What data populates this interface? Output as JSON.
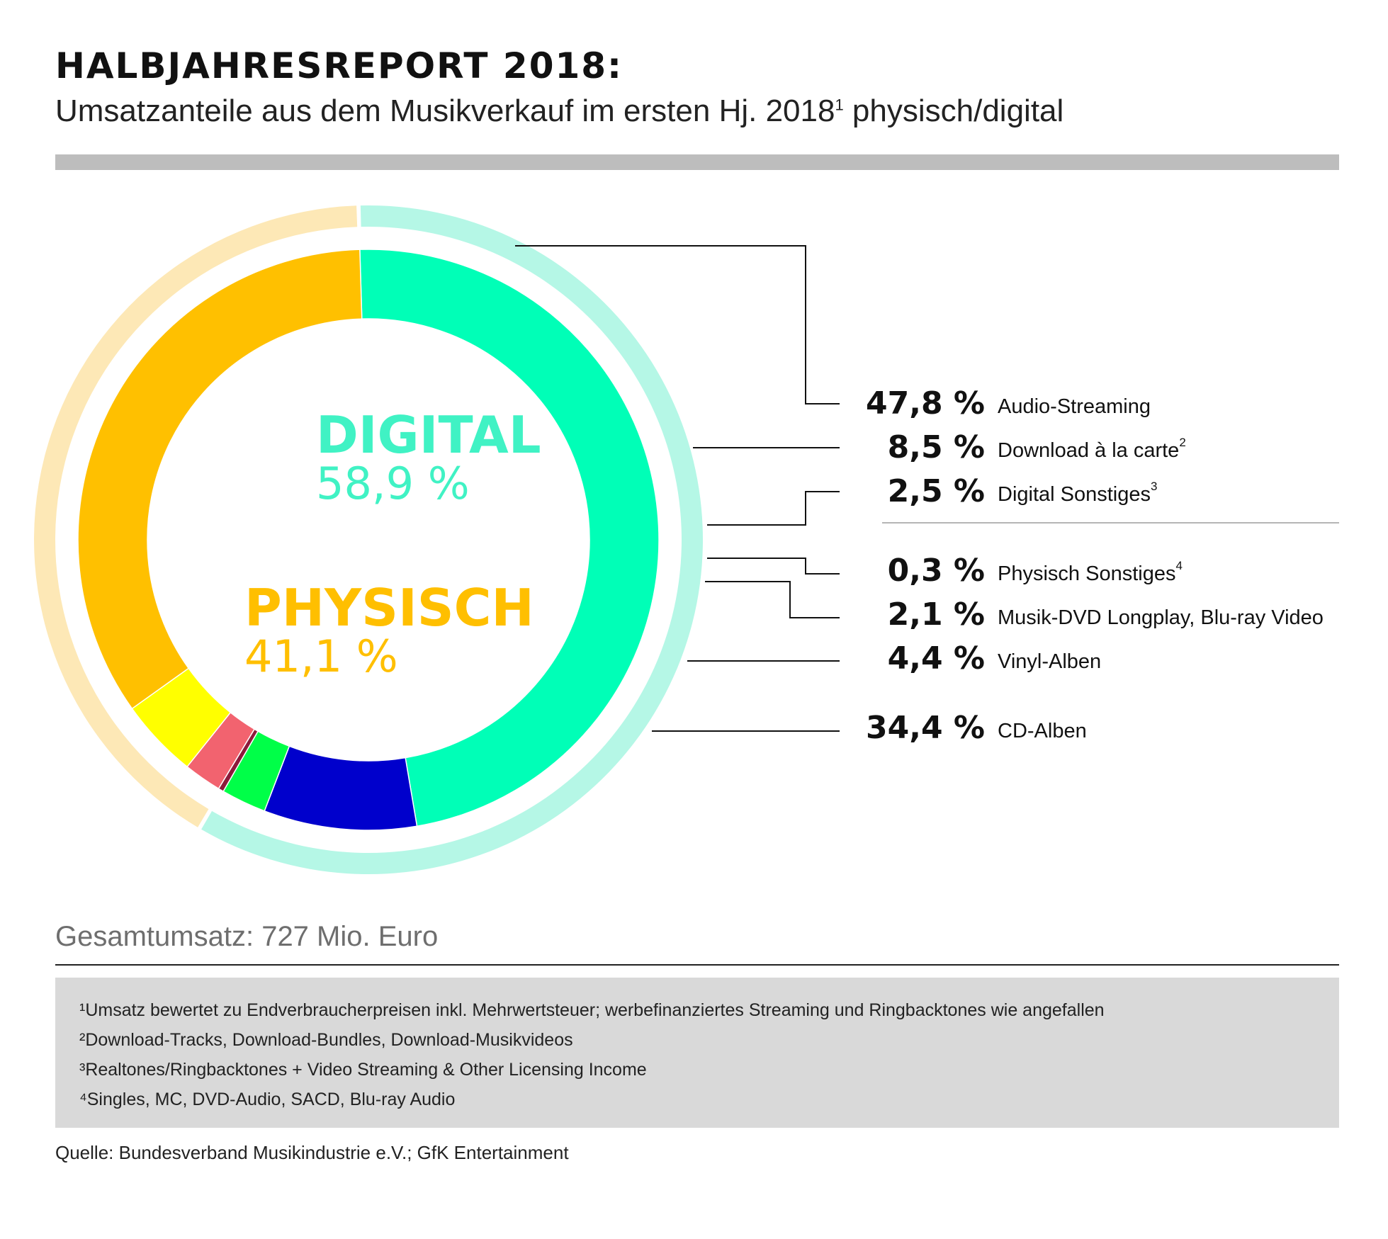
{
  "header": {
    "title": "HALBJAHRESREPORT 2018:",
    "subtitle_pre": "Umsatzanteile aus dem Musikverkauf im ersten Hj. 2018",
    "subtitle_sup": "1",
    "subtitle_post": " physisch/digital"
  },
  "center": {
    "digital_label": "DIGITAL",
    "digital_value": "58,9 %",
    "physical_label": "PHYSISCH",
    "physical_value": "41,1 %"
  },
  "chart_data": {
    "type": "pie",
    "variant": "donut",
    "groups": [
      {
        "name": "DIGITAL",
        "value": 58.9,
        "display": "58,9 %",
        "color": "#b5f7e6"
      },
      {
        "name": "PHYSISCH",
        "value": 41.1,
        "display": "41,1 %",
        "color": "#fde8b6"
      }
    ],
    "slices": [
      {
        "label": "Audio-Streaming",
        "sup": "",
        "value": 47.8,
        "display": "47,8 %",
        "color": "#00ffb7",
        "group": "DIGITAL"
      },
      {
        "label": "Download à la carte",
        "sup": "2",
        "value": 8.5,
        "display": "8,5 %",
        "color": "#0000cc",
        "group": "DIGITAL"
      },
      {
        "label": "Digital Sonstiges",
        "sup": "3",
        "value": 2.5,
        "display": "2,5 %",
        "color": "#00ff48",
        "group": "DIGITAL"
      },
      {
        "label": "Physisch Sonstiges",
        "sup": "4",
        "value": 0.3,
        "display": "0,3 %",
        "color": "#8c1a3a",
        "group": "PHYSISCH"
      },
      {
        "label": "Musik-DVD Longplay, Blu-ray Video",
        "sup": "",
        "value": 2.1,
        "display": "2,1 %",
        "color": "#f2636f",
        "group": "PHYSISCH"
      },
      {
        "label": "Vinyl-Alben",
        "sup": "",
        "value": 4.4,
        "display": "4,4 %",
        "color": "#ffff00",
        "group": "PHYSISCH"
      },
      {
        "label": "CD-Alben",
        "sup": "",
        "value": 34.4,
        "display": "34,4 %",
        "color": "#ffc000",
        "group": "PHYSISCH"
      }
    ]
  },
  "footer": {
    "total": "Gesamtumsatz: 727 Mio. Euro",
    "notes": [
      "¹Umsatz bewertet zu Endverbraucherpreisen inkl. Mehrwertsteuer; werbefinanziertes Streaming und Ringbacktones wie angefallen",
      "²Download-Tracks, Download-Bundles, Download-Musikvideos",
      "³Realtones/Ringbacktones + Video Streaming & Other Licensing Income",
      "⁴Singles, MC, DVD-Audio, SACD, Blu-ray Audio"
    ],
    "source": "Quelle: Bundesverband Musikindustrie e.V.; GfK Entertainment"
  }
}
